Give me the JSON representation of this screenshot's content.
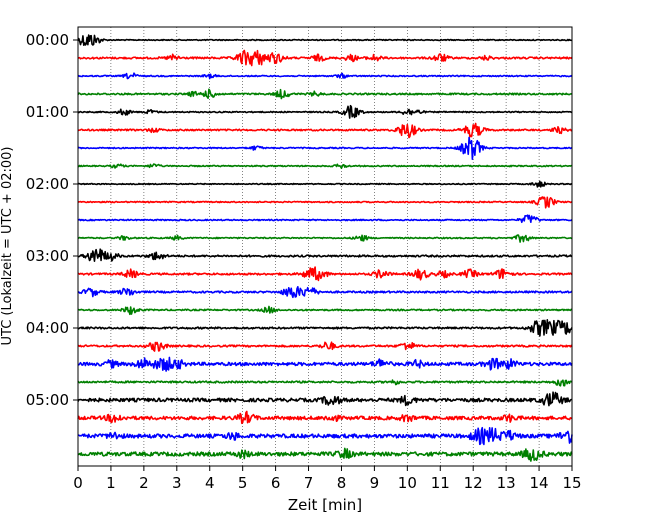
{
  "chart_data": {
    "type": "line",
    "title": "",
    "xlabel": "Zeit  [min]",
    "ylabel": "UTC (Lokalzeit = UTC + 02:00)",
    "xlim": [
      0,
      15
    ],
    "x_ticks": [
      "0",
      "1",
      "2",
      "3",
      "4",
      "5",
      "6",
      "7",
      "8",
      "9",
      "10",
      "11",
      "12",
      "13",
      "14",
      "15"
    ],
    "y_ticks": [
      "00:00",
      "01:00",
      "02:00",
      "03:00",
      "04:00",
      "05:00"
    ],
    "grid": "vertical dotted at each minute",
    "trace_colors": [
      "#000000",
      "#ff0000",
      "#0000ff",
      "#008000"
    ],
    "trace_interval_minutes": 15,
    "trace_count": 24,
    "traces": [
      {
        "start": "00:00",
        "color": "#000000",
        "base": 0.5,
        "events": [
          [
            0.2,
            5
          ],
          [
            0.35,
            3
          ],
          [
            0.55,
            3
          ]
        ]
      },
      {
        "start": "00:15",
        "color": "#ff0000",
        "base": 0.9,
        "events": [
          [
            2.9,
            3
          ],
          [
            5.1,
            7
          ],
          [
            5.5,
            6
          ],
          [
            6.0,
            5
          ],
          [
            7.3,
            3
          ],
          [
            8.3,
            3
          ],
          [
            9.0,
            3
          ],
          [
            11.0,
            4
          ],
          [
            12.4,
            2
          ]
        ]
      },
      {
        "start": "00:30",
        "color": "#0000ff",
        "base": 0.6,
        "events": [
          [
            1.6,
            3
          ],
          [
            4.0,
            2
          ],
          [
            8.0,
            2
          ]
        ]
      },
      {
        "start": "00:45",
        "color": "#008000",
        "base": 0.8,
        "events": [
          [
            3.5,
            2
          ],
          [
            4.0,
            4
          ],
          [
            6.2,
            4
          ],
          [
            7.2,
            2
          ]
        ]
      },
      {
        "start": "01:00",
        "color": "#000000",
        "base": 0.6,
        "events": [
          [
            1.4,
            3
          ],
          [
            2.2,
            2
          ],
          [
            8.3,
            6
          ],
          [
            10.0,
            3
          ],
          [
            10.3,
            2
          ]
        ]
      },
      {
        "start": "01:15",
        "color": "#ff0000",
        "base": 0.8,
        "events": [
          [
            2.3,
            2
          ],
          [
            9.9,
            5
          ],
          [
            10.1,
            4
          ],
          [
            12.0,
            7
          ],
          [
            14.6,
            3
          ]
        ]
      },
      {
        "start": "01:30",
        "color": "#0000ff",
        "base": 0.6,
        "events": [
          [
            5.4,
            2
          ],
          [
            11.9,
            7
          ],
          [
            12.0,
            5
          ]
        ]
      },
      {
        "start": "01:45",
        "color": "#008000",
        "base": 0.6,
        "events": [
          [
            1.2,
            2
          ],
          [
            2.3,
            2
          ],
          [
            8.0,
            2
          ]
        ]
      },
      {
        "start": "02:00",
        "color": "#000000",
        "base": 0.5,
        "events": [
          [
            14.0,
            3
          ]
        ]
      },
      {
        "start": "02:15",
        "color": "#ff0000",
        "base": 0.6,
        "events": [
          [
            14.2,
            6
          ]
        ]
      },
      {
        "start": "02:30",
        "color": "#0000ff",
        "base": 0.6,
        "events": [
          [
            13.7,
            5
          ]
        ]
      },
      {
        "start": "02:45",
        "color": "#008000",
        "base": 0.6,
        "events": [
          [
            1.4,
            2
          ],
          [
            3.0,
            2
          ],
          [
            8.6,
            3
          ],
          [
            13.5,
            4
          ]
        ]
      },
      {
        "start": "03:00",
        "color": "#000000",
        "base": 0.9,
        "events": [
          [
            0.5,
            5
          ],
          [
            0.6,
            4
          ],
          [
            1.0,
            4
          ],
          [
            2.4,
            4
          ]
        ]
      },
      {
        "start": "03:15",
        "color": "#ff0000",
        "base": 0.9,
        "events": [
          [
            1.6,
            4
          ],
          [
            7.1,
            6
          ],
          [
            7.4,
            3
          ],
          [
            9.2,
            4
          ],
          [
            10.4,
            5
          ],
          [
            11.1,
            3
          ],
          [
            11.9,
            4
          ],
          [
            12.9,
            5
          ]
        ]
      },
      {
        "start": "03:30",
        "color": "#0000ff",
        "base": 0.9,
        "events": [
          [
            0.4,
            4
          ],
          [
            1.5,
            4
          ],
          [
            6.5,
            6
          ],
          [
            7.0,
            5
          ]
        ]
      },
      {
        "start": "03:45",
        "color": "#008000",
        "base": 0.7,
        "events": [
          [
            1.6,
            4
          ],
          [
            5.8,
            3
          ]
        ]
      },
      {
        "start": "04:00",
        "color": "#000000",
        "base": 0.9,
        "events": [
          [
            14.0,
            7
          ],
          [
            14.4,
            6
          ],
          [
            14.8,
            6
          ]
        ]
      },
      {
        "start": "04:15",
        "color": "#ff0000",
        "base": 0.9,
        "events": [
          [
            2.4,
            5
          ],
          [
            7.6,
            4
          ],
          [
            10.0,
            4
          ]
        ]
      },
      {
        "start": "04:30",
        "color": "#0000ff",
        "base": 1.6,
        "events": [
          [
            1.0,
            3
          ],
          [
            2.0,
            5
          ],
          [
            2.6,
            6
          ],
          [
            3.0,
            4
          ],
          [
            9.2,
            4
          ],
          [
            10.3,
            3
          ],
          [
            12.6,
            5
          ],
          [
            13.1,
            4
          ]
        ]
      },
      {
        "start": "04:45",
        "color": "#008000",
        "base": 0.9,
        "events": [
          [
            9.6,
            2
          ],
          [
            14.7,
            4
          ]
        ]
      },
      {
        "start": "05:00",
        "color": "#000000",
        "base": 1.7,
        "events": [
          [
            7.7,
            5
          ],
          [
            10.0,
            4
          ],
          [
            14.4,
            7
          ]
        ]
      },
      {
        "start": "05:15",
        "color": "#ff0000",
        "base": 1.7,
        "events": [
          [
            1.1,
            4
          ],
          [
            5.1,
            5
          ],
          [
            7.7,
            3
          ],
          [
            10.0,
            3
          ],
          [
            13.1,
            3
          ]
        ]
      },
      {
        "start": "05:30",
        "color": "#0000ff",
        "base": 1.9,
        "events": [
          [
            1.1,
            3
          ],
          [
            4.7,
            3
          ],
          [
            12.2,
            6
          ],
          [
            12.6,
            6
          ],
          [
            13.1,
            4
          ],
          [
            14.9,
            6
          ]
        ]
      },
      {
        "start": "05:45",
        "color": "#008000",
        "base": 1.9,
        "events": [
          [
            5.0,
            3
          ],
          [
            8.1,
            4
          ],
          [
            13.8,
            6
          ]
        ]
      }
    ]
  }
}
